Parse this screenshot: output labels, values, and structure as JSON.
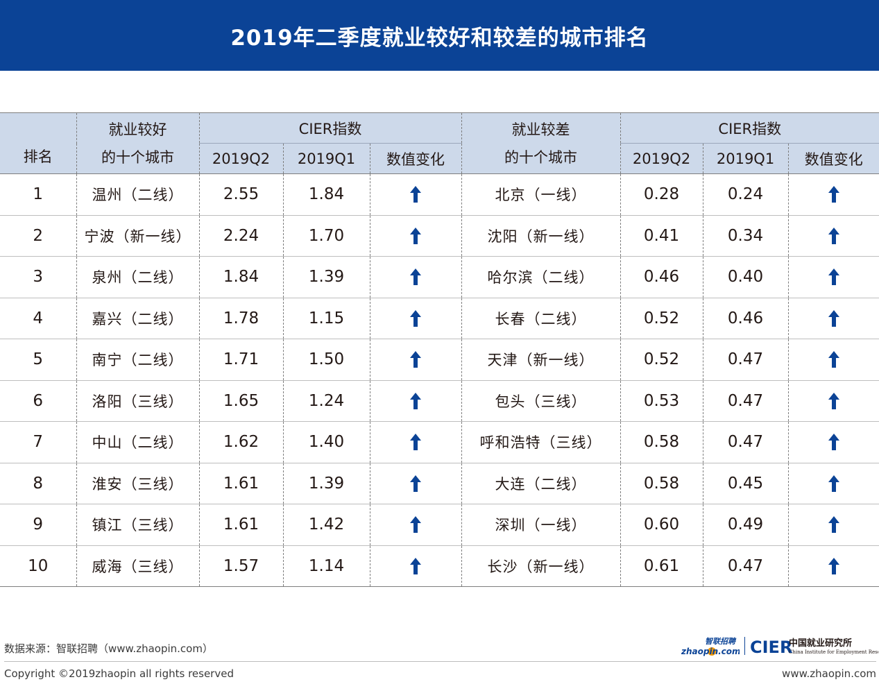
{
  "title": "2019年二季度就业较好和较差的城市排名",
  "header": {
    "rank": "排名",
    "good_city_line1": "就业较好",
    "good_city_line2": "的十个城市",
    "bad_city_line1": "就业较差",
    "bad_city_line2": "的十个城市",
    "index_group": "CIER指数",
    "q2": "2019Q2",
    "q1": "2019Q1",
    "change": "数值变化"
  },
  "rows": [
    {
      "rank": "1",
      "good_city": "温州（二线）",
      "good_q2": "2.55",
      "good_q1": "1.84",
      "good_change": "up",
      "bad_city": "北京（一线）",
      "bad_q2": "0.28",
      "bad_q1": "0.24",
      "bad_change": "up"
    },
    {
      "rank": "2",
      "good_city": "宁波（新一线）",
      "good_q2": "2.24",
      "good_q1": "1.70",
      "good_change": "up",
      "bad_city": "沈阳（新一线）",
      "bad_q2": "0.41",
      "bad_q1": "0.34",
      "bad_change": "up"
    },
    {
      "rank": "3",
      "good_city": "泉州（二线）",
      "good_q2": "1.84",
      "good_q1": "1.39",
      "good_change": "up",
      "bad_city": "哈尔滨（二线）",
      "bad_q2": "0.46",
      "bad_q1": "0.40",
      "bad_change": "up"
    },
    {
      "rank": "4",
      "good_city": "嘉兴（二线）",
      "good_q2": "1.78",
      "good_q1": "1.15",
      "good_change": "up",
      "bad_city": "长春（二线）",
      "bad_q2": "0.52",
      "bad_q1": "0.46",
      "bad_change": "up"
    },
    {
      "rank": "5",
      "good_city": "南宁（二线）",
      "good_q2": "1.71",
      "good_q1": "1.50",
      "good_change": "up",
      "bad_city": "天津（新一线）",
      "bad_q2": "0.52",
      "bad_q1": "0.47",
      "bad_change": "up"
    },
    {
      "rank": "6",
      "good_city": "洛阳（三线）",
      "good_q2": "1.65",
      "good_q1": "1.24",
      "good_change": "up",
      "bad_city": "包头（三线）",
      "bad_q2": "0.53",
      "bad_q1": "0.47",
      "bad_change": "up"
    },
    {
      "rank": "7",
      "good_city": "中山（二线）",
      "good_q2": "1.62",
      "good_q1": "1.40",
      "good_change": "up",
      "bad_city": "呼和浩特（三线）",
      "bad_q2": "0.58",
      "bad_q1": "0.47",
      "bad_change": "up"
    },
    {
      "rank": "8",
      "good_city": "淮安（三线）",
      "good_q2": "1.61",
      "good_q1": "1.39",
      "good_change": "up",
      "bad_city": "大连（二线）",
      "bad_q2": "0.58",
      "bad_q1": "0.45",
      "bad_change": "up"
    },
    {
      "rank": "9",
      "good_city": "镇江（三线）",
      "good_q2": "1.61",
      "good_q1": "1.42",
      "good_change": "up",
      "bad_city": "深圳（一线）",
      "bad_q2": "0.60",
      "bad_q1": "0.49",
      "bad_change": "up"
    },
    {
      "rank": "10",
      "good_city": "威海（三线）",
      "good_q2": "1.57",
      "good_q1": "1.14",
      "good_change": "up",
      "bad_city": "长沙（新一线）",
      "bad_q2": "0.61",
      "bad_q1": "0.47",
      "bad_change": "up"
    }
  ],
  "footer": {
    "source": "数据来源：智联招聘（www.zhaopin.com）",
    "copyright": "Copyright ©2019zhaopin all rights reserved",
    "website": "www.zhaopin.com"
  },
  "logos": {
    "zhaopin_cn": "智联招聘",
    "zhaopin_en": "zhaopin.com",
    "cier": "CIER",
    "cier_cn": "中国就业研究所",
    "cier_en": "China Institute for Employment Research"
  },
  "icons": {
    "change_up": "arrow-up-icon"
  },
  "colors": {
    "banner": "#0b4396",
    "header_bg": "#cdd9ea",
    "arrow": "#0b4396",
    "zhaopin_orange": "#f39800"
  }
}
